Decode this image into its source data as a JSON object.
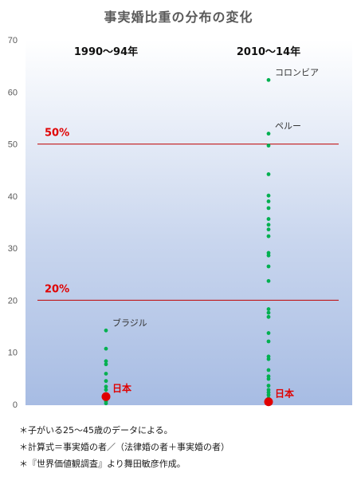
{
  "title": "事実婚比重の分布の変化",
  "notes": [
    "＊子がいる25〜45歳のデータによる。",
    "＊計算式＝事実婚の者／（法律婚の者＋事実婚の者）",
    "＊『世界価値観調査』より舞田敏彦作成。"
  ],
  "chart_data": {
    "type": "scatter",
    "title": "事実婚比重の分布の変化",
    "ylim": [
      0,
      70
    ],
    "yticks": [
      0,
      10,
      20,
      30,
      40,
      50,
      60,
      70
    ],
    "grid": false,
    "categories": [
      "1990〜94年",
      "2010〜14年"
    ],
    "series": [
      {
        "name": "1990〜94年",
        "color": "#00b050",
        "values": [
          14.2,
          10.7,
          8.3,
          7.7,
          5.9,
          4.5,
          3.4,
          2.8,
          2.0,
          1.2,
          0.6,
          0.2
        ]
      },
      {
        "name": "2010〜14年",
        "color": "#00b050",
        "values": [
          62.3,
          52.0,
          49.7,
          44.2,
          40.1,
          39.0,
          37.7,
          35.6,
          34.5,
          33.6,
          32.3,
          29.1,
          28.6,
          26.5,
          23.7,
          18.3,
          17.6,
          16.8,
          13.7,
          12.1,
          9.2,
          8.7,
          6.6,
          5.4,
          4.9,
          3.6,
          2.8,
          2.3,
          1.8,
          1.2
        ]
      }
    ],
    "highlights": [
      {
        "label": "日本",
        "category": "1990〜94年",
        "value": 1.5,
        "color": "#e00000"
      },
      {
        "label": "日本",
        "category": "2010〜14年",
        "value": 0.5,
        "color": "#e00000"
      }
    ],
    "annotations": [
      {
        "text": "ブラジル",
        "category": "1990〜94年",
        "value": 14.2
      },
      {
        "text": "コロンビア",
        "category": "2010〜14年",
        "value": 62.3
      },
      {
        "text": "ペルー",
        "category": "2010〜14年",
        "value": 52.0
      }
    ],
    "reference_lines": [
      {
        "value": 50,
        "label": "50%",
        "color": "#c00000"
      },
      {
        "value": 20,
        "label": "20%",
        "color": "#c00000"
      }
    ]
  }
}
